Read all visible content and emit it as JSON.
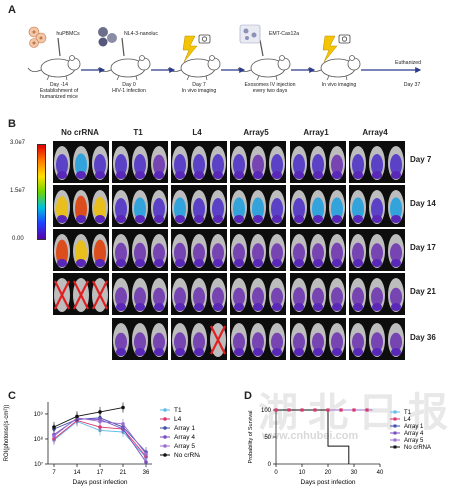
{
  "panel_labels": {
    "a": "A",
    "b": "B",
    "c": "C",
    "d": "D"
  },
  "timeline": {
    "cell_labels": [
      "huPBMCs",
      "NL4-3-nanoluc",
      "EMT-Cas12a"
    ],
    "steps": [
      {
        "day": "Day -14",
        "desc1": "Establishment of",
        "desc2": "humanized mice"
      },
      {
        "day": "Day 0",
        "desc1": "HIV-1 infection",
        "desc2": ""
      },
      {
        "day": "Day 7",
        "desc1": "In vivo imaging",
        "desc2": ""
      },
      {
        "day": "",
        "desc1": "Exosomes IV injection",
        "desc2": "every two days"
      },
      {
        "day": "",
        "desc1": "In vivo imaging",
        "desc2": ""
      },
      {
        "day": "Day 37",
        "desc1": "",
        "desc2": ""
      }
    ],
    "end_label": "Euthanized"
  },
  "imaging": {
    "colorbar_ticks": [
      "3.0e7",
      "1.5e7",
      "0.00"
    ],
    "groups": [
      "No crRNA",
      "T1",
      "L4",
      "Array5",
      "Array1",
      "Array4"
    ],
    "days": [
      "Day 7",
      "Day 14",
      "Day 17",
      "Day 21",
      "Day 36"
    ]
  },
  "chart_data": [
    {
      "type": "line",
      "xlabel": "Days post infection",
      "ylabel": "ROI(photons/(s·cm²))",
      "categories": [
        7,
        14,
        17,
        21,
        36
      ],
      "y_ticks": [
        "10⁷",
        "10⁸",
        "10⁹"
      ],
      "log_scale": true,
      "ylim": [
        10000000,
        3000000000
      ],
      "series": [
        {
          "name": "T1",
          "color": "#5fbbe8",
          "values": [
            90000000,
            500000000,
            220000000,
            190000000,
            18000000
          ]
        },
        {
          "name": "L4",
          "color": "#d9356a",
          "values": [
            100000000,
            550000000,
            300000000,
            250000000,
            20000000
          ]
        },
        {
          "name": "Array 1",
          "color": "#3e4fa8",
          "values": [
            250000000,
            600000000,
            700000000,
            300000000,
            30000000
          ]
        },
        {
          "name": "Array 4",
          "color": "#7a4bbf",
          "values": [
            150000000,
            650000000,
            600000000,
            250000000,
            12000000
          ]
        },
        {
          "name": "Array 5",
          "color": "#9b6dcf",
          "values": [
            130000000,
            700000000,
            500000000,
            400000000,
            25000000
          ]
        },
        {
          "name": "No crRNA",
          "color": "#111111",
          "values": [
            300000000,
            800000000,
            1200000000,
            1800000000,
            null
          ]
        }
      ]
    },
    {
      "type": "line",
      "xlabel": "Days post infection",
      "ylabel": "Probability of Survival",
      "x_ticks": [
        0,
        10,
        20,
        30,
        40
      ],
      "y_ticks": [
        0,
        50,
        100
      ],
      "xlim": [
        0,
        40
      ],
      "ylim": [
        0,
        100
      ],
      "series": [
        {
          "name": "T1",
          "color": "#5fbbe8",
          "x": [
            0,
            37
          ],
          "y": [
            100,
            100
          ]
        },
        {
          "name": "L4",
          "color": "#d9356a",
          "x": [
            0,
            37
          ],
          "y": [
            100,
            100
          ]
        },
        {
          "name": "Array 1",
          "color": "#3e4fa8",
          "x": [
            0,
            37
          ],
          "y": [
            100,
            100
          ]
        },
        {
          "name": "Array 4",
          "color": "#7a4bbf",
          "x": [
            0,
            37
          ],
          "y": [
            100,
            100
          ]
        },
        {
          "name": "Array 5",
          "color": "#9b6dcf",
          "x": [
            0,
            37
          ],
          "y": [
            100,
            100
          ]
        },
        {
          "name": "No crRNA",
          "color": "#111111",
          "x": [
            0,
            20,
            20,
            28,
            28
          ],
          "y": [
            100,
            100,
            33,
            33,
            0
          ]
        }
      ]
    }
  ],
  "watermark": {
    "chars": "湖北日报",
    "url": "www.cnhubei.com"
  }
}
